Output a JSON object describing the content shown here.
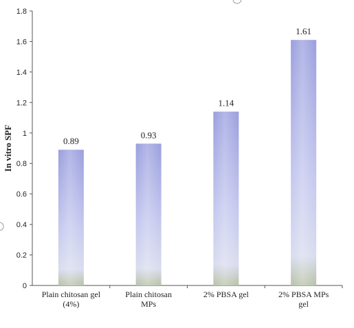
{
  "chart_data": {
    "type": "bar",
    "categories": [
      [
        "Plain chitosan gel",
        "(4%)"
      ],
      [
        "Plain chitosan",
        "MPs"
      ],
      [
        "2% PBSA gel"
      ],
      [
        "2% PBSA MPs",
        "gel"
      ]
    ],
    "values": [
      0.89,
      0.93,
      1.14,
      1.61
    ],
    "data_labels": [
      "0.89",
      "0.93",
      "1.14",
      "1.61"
    ],
    "title": "",
    "xlabel": "",
    "ylabel": "In vitro SPF",
    "ylim": [
      0,
      1.8
    ],
    "yticks": [
      0,
      0.2,
      0.4,
      0.6,
      0.8,
      1,
      1.2,
      1.4,
      1.6,
      1.8
    ],
    "ytick_labels": [
      "0",
      "0.2",
      "0.4",
      "0.6",
      "0.8",
      "1",
      "1.2",
      "1.4",
      "1.6",
      "1.8"
    ],
    "grid": false,
    "legend": "none",
    "colors": {
      "bar_top": "#9a9fde",
      "bar_mid": "#c3c7ee",
      "bar_bottom": "#d9dcee",
      "bar_base": "#b8c2a8",
      "axis": "#555555"
    }
  }
}
